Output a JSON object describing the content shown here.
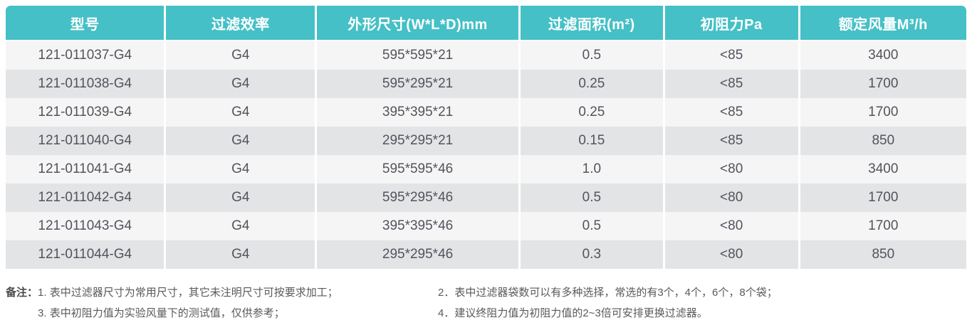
{
  "table": {
    "headers": [
      "型号",
      "过滤效率",
      "外形尺寸(W*L*D)mm",
      "过滤面积(m²)",
      "初阻力Pa",
      "额定风量M³/h"
    ],
    "rows": [
      [
        "121-011037-G4",
        "G4",
        "595*595*21",
        "0.5",
        "<85",
        "3400"
      ],
      [
        "121-011038-G4",
        "G4",
        "595*295*21",
        "0.25",
        "<85",
        "1700"
      ],
      [
        "121-011039-G4",
        "G4",
        "395*395*21",
        "0.25",
        "<85",
        "1700"
      ],
      [
        "121-011040-G4",
        "G4",
        "295*295*21",
        "0.15",
        "<85",
        "850"
      ],
      [
        "121-011041-G4",
        "G4",
        "595*595*46",
        "1.0",
        "<80",
        "3400"
      ],
      [
        "121-011042-G4",
        "G4",
        "595*295*46",
        "0.5",
        "<80",
        "1700"
      ],
      [
        "121-011043-G4",
        "G4",
        "395*395*46",
        "0.5",
        "<80",
        "1700"
      ],
      [
        "121-011044-G4",
        "G4",
        "295*295*46",
        "0.3",
        "<80",
        "850"
      ]
    ]
  },
  "notes": {
    "label": "备注：",
    "left": [
      "1. 表中过滤器尺寸为常用尺寸，其它未注明尺寸可按要求加工；",
      "3. 表中初阻力值为实验风量下的测试值，仅供参考；"
    ],
    "right": [
      "2．表中过滤器袋数可以有多种选择，常选的有3个，4个，6个，8个袋；",
      "4．建议终阻力值为初阻力值的2~3倍可安排更换过滤器。"
    ]
  },
  "colors": {
    "header_bg": "#45c0c6",
    "header_text": "#ffffff",
    "row_light": "#f5f5f6",
    "row_dark": "#e3e4e6",
    "cell_text": "#53535c",
    "note_text": "#595959"
  }
}
